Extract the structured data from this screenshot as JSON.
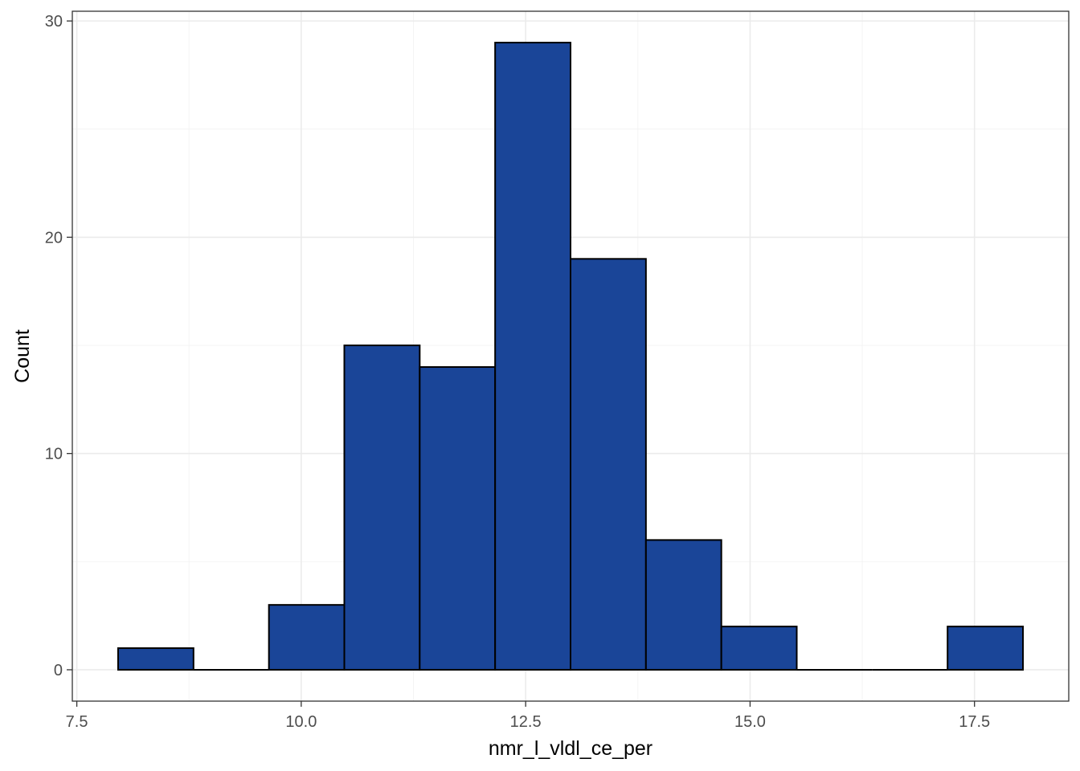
{
  "chart_data": {
    "type": "histogram",
    "xlabel": "nmr_l_vldl_ce_per",
    "ylabel": "Count",
    "xlim": [
      7.45,
      18.55
    ],
    "ylim": [
      -1.45,
      30.45
    ],
    "x_ticks": [
      7.5,
      10.0,
      12.5,
      15.0,
      17.5
    ],
    "x_tick_labels": [
      "7.5",
      "10.0",
      "12.5",
      "15.0",
      "17.5"
    ],
    "x_minor_ticks": [
      8.75,
      11.25,
      13.75,
      16.25
    ],
    "y_ticks": [
      0,
      10,
      20,
      30
    ],
    "y_tick_labels": [
      "0",
      "10",
      "20",
      "30"
    ],
    "y_minor_ticks": [
      5,
      15,
      25
    ],
    "bin_edges": [
      7.96,
      8.8,
      9.64,
      10.48,
      11.32,
      12.16,
      13.0,
      13.84,
      14.68,
      15.52,
      16.36,
      17.2,
      18.04
    ],
    "counts": [
      1,
      0,
      3,
      15,
      14,
      29,
      19,
      6,
      2,
      0,
      0,
      2
    ],
    "fill_color": "#1a4598",
    "outline_color": "#000000",
    "grid": true,
    "legend": "none"
  }
}
